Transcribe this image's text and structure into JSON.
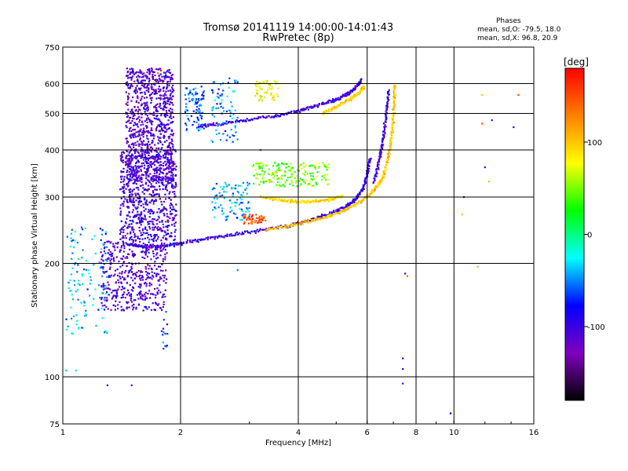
{
  "header": {
    "title_line1": "Tromsø 20141119 14:00:00-14:01:43",
    "title_line2": "RwPretec (8p)",
    "stats_heading": "Phases",
    "stats_o": "mean, sd,O: -79.5, 18.0",
    "stats_x": "mean, sd,X:  96.8, 20.9"
  },
  "colorbar": {
    "unit_label": "[deg]",
    "range": [
      -180,
      180
    ],
    "ticks": [
      100,
      0,
      -100
    ],
    "tick_labels": [
      "100",
      "0",
      "-100"
    ],
    "colormap": [
      "#000000",
      "#8000c0",
      "#0000ff",
      "#00ffff",
      "#00ff00",
      "#ffff00",
      "#ff8000",
      "#ff0000"
    ]
  },
  "chart_data": {
    "type": "scatter",
    "xlabel": "Frequency [MHz]",
    "ylabel": "Stationary phase Virtual Height [km]",
    "xscale": "log",
    "yscale": "log",
    "xlim": [
      1,
      16
    ],
    "ylim": [
      75,
      750
    ],
    "xticks": [
      1,
      2,
      4,
      6,
      8,
      10,
      16
    ],
    "xtick_labels": [
      "1",
      "2",
      "4",
      "6",
      "8",
      "10",
      "16"
    ],
    "xgrid": [
      2,
      4,
      6,
      8,
      10
    ],
    "yticks": [
      75,
      100,
      200,
      300,
      400,
      500,
      600,
      750
    ],
    "ytick_labels": [
      "75",
      "100",
      "200",
      "300",
      "400",
      "500",
      "600",
      "750"
    ],
    "ygrid": [
      100,
      200,
      300,
      400,
      500,
      600
    ],
    "grid": true,
    "color_value": "phase [deg]",
    "traces": [
      {
        "x": [
          1.45,
          1.6,
          1.8,
          2.0,
          2.3,
          2.7,
          3.2,
          3.8,
          4.3,
          4.8,
          5.3,
          5.6,
          5.85,
          6.0,
          6.1
        ],
        "y": [
          225,
          222,
          222,
          226,
          232,
          238,
          245,
          252,
          260,
          270,
          283,
          296,
          315,
          345,
          380
        ],
        "phase": -100
      },
      {
        "x": [
          3.3,
          3.8,
          4.3,
          4.8,
          5.3,
          5.8,
          6.2,
          6.5,
          6.7,
          6.85,
          6.95,
          7.02,
          7.05
        ],
        "y": [
          245,
          252,
          260,
          268,
          278,
          292,
          310,
          330,
          360,
          400,
          450,
          520,
          600
        ],
        "phase": 100
      },
      {
        "x": [
          6.25,
          6.45,
          6.6,
          6.72,
          6.8
        ],
        "y": [
          330,
          380,
          430,
          500,
          580
        ],
        "phase": -100
      },
      {
        "x": [
          2.2,
          2.5,
          2.9,
          3.4,
          3.9,
          4.4,
          4.9,
          5.3,
          5.6,
          5.8
        ],
        "y": [
          460,
          468,
          478,
          490,
          505,
          522,
          540,
          560,
          585,
          615
        ],
        "phase": -100
      },
      {
        "x": [
          4.6,
          5.0,
          5.4,
          5.7,
          5.9
        ],
        "y": [
          500,
          520,
          545,
          565,
          590
        ],
        "phase": 95
      },
      {
        "x": [
          3.2,
          3.6,
          4.0,
          4.4,
          4.8,
          5.2
        ],
        "y": [
          300,
          295,
          292,
          292,
          296,
          302
        ],
        "phase": 90
      }
    ],
    "clusters": [
      {
        "x": [
          1.45,
          1.92
        ],
        "y": [
          330,
          660
        ],
        "n": 900,
        "phase": -110
      },
      {
        "x": [
          1.4,
          1.95
        ],
        "y": [
          230,
          400
        ],
        "n": 700,
        "phase": -105
      },
      {
        "x": [
          1.25,
          1.85
        ],
        "y": [
          150,
          230
        ],
        "n": 450,
        "phase": -110
      },
      {
        "x": [
          1.02,
          1.3
        ],
        "y": [
          130,
          250
        ],
        "n": 120,
        "phase": -40
      },
      {
        "x": [
          2.05,
          2.3
        ],
        "y": [
          450,
          590
        ],
        "n": 90,
        "phase": -60
      },
      {
        "x": [
          2.4,
          2.8
        ],
        "y": [
          420,
          620
        ],
        "n": 80,
        "phase": -50
      },
      {
        "x": [
          2.4,
          3.0
        ],
        "y": [
          260,
          330
        ],
        "n": 100,
        "phase": -40
      },
      {
        "x": [
          3.0,
          4.8
        ],
        "y": [
          320,
          370
        ],
        "n": 180,
        "phase": 50
      },
      {
        "x": [
          3.1,
          3.6
        ],
        "y": [
          540,
          610
        ],
        "n": 60,
        "phase": 80
      },
      {
        "x": [
          2.9,
          3.3
        ],
        "y": [
          255,
          270
        ],
        "n": 50,
        "phase": 150
      },
      {
        "x": [
          1.78,
          1.85
        ],
        "y": [
          115,
          150
        ],
        "n": 14,
        "phase": -70
      }
    ],
    "sparse_points": [
      {
        "x": 7.5,
        "y": 188,
        "phase": -100
      },
      {
        "x": 7.6,
        "y": 185,
        "phase": 140
      },
      {
        "x": 7.4,
        "y": 112,
        "phase": -90
      },
      {
        "x": 7.4,
        "y": 105,
        "phase": -100
      },
      {
        "x": 7.4,
        "y": 96,
        "phase": -110
      },
      {
        "x": 9.8,
        "y": 80,
        "phase": -80
      },
      {
        "x": 10.6,
        "y": 300,
        "phase": -100
      },
      {
        "x": 10.5,
        "y": 270,
        "phase": 100
      },
      {
        "x": 11.5,
        "y": 196,
        "phase": 110
      },
      {
        "x": 11.8,
        "y": 560,
        "phase": 100
      },
      {
        "x": 12.0,
        "y": 360,
        "phase": -100
      },
      {
        "x": 12.3,
        "y": 330,
        "phase": 110
      },
      {
        "x": 12.5,
        "y": 480,
        "phase": -110
      },
      {
        "x": 14.2,
        "y": 460,
        "phase": -100
      },
      {
        "x": 14.6,
        "y": 560,
        "phase": 150
      },
      {
        "x": 11.8,
        "y": 470,
        "phase": 150
      },
      {
        "x": 1.02,
        "y": 104,
        "phase": -40
      },
      {
        "x": 1.08,
        "y": 104,
        "phase": -30
      },
      {
        "x": 1.3,
        "y": 95,
        "phase": -100
      },
      {
        "x": 1.5,
        "y": 95,
        "phase": -110
      },
      {
        "x": 2.8,
        "y": 192,
        "phase": -50
      },
      {
        "x": 3.2,
        "y": 400,
        "phase": 170
      },
      {
        "x": 1.78,
        "y": 650,
        "phase": 175
      },
      {
        "x": 1.75,
        "y": 640,
        "phase": 140
      }
    ]
  }
}
